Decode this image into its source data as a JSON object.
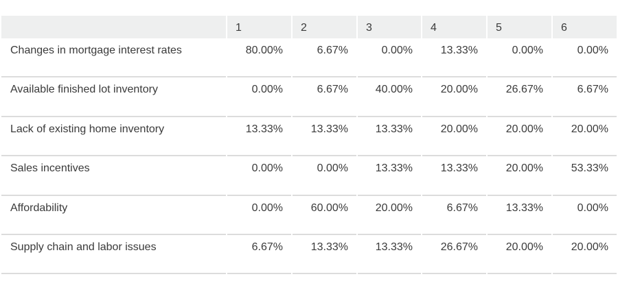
{
  "chart_data": {
    "type": "table",
    "columns": [
      "",
      "1",
      "2",
      "3",
      "4",
      "5",
      "6"
    ],
    "rows": [
      {
        "label": "Changes in mortgage interest rates",
        "values": [
          "80.00%",
          "6.67%",
          "0.00%",
          "13.33%",
          "0.00%",
          "0.00%"
        ]
      },
      {
        "label": "Available finished lot inventory",
        "values": [
          "0.00%",
          "6.67%",
          "40.00%",
          "20.00%",
          "26.67%",
          "6.67%"
        ]
      },
      {
        "label": "Lack of existing home inventory",
        "values": [
          "13.33%",
          "13.33%",
          "13.33%",
          "20.00%",
          "20.00%",
          "20.00%"
        ]
      },
      {
        "label": "Sales incentives",
        "values": [
          "0.00%",
          "0.00%",
          "13.33%",
          "13.33%",
          "20.00%",
          "53.33%"
        ]
      },
      {
        "label": "Affordability",
        "values": [
          "0.00%",
          "60.00%",
          "20.00%",
          "6.67%",
          "13.33%",
          "0.00%"
        ]
      },
      {
        "label": "Supply chain and labor issues",
        "values": [
          "6.67%",
          "13.33%",
          "13.33%",
          "26.67%",
          "20.00%",
          "20.00%"
        ]
      }
    ],
    "colors": {
      "header_bg": "#eeefef",
      "rule": "#dcdcdc",
      "text": "#3a3a3a"
    }
  }
}
